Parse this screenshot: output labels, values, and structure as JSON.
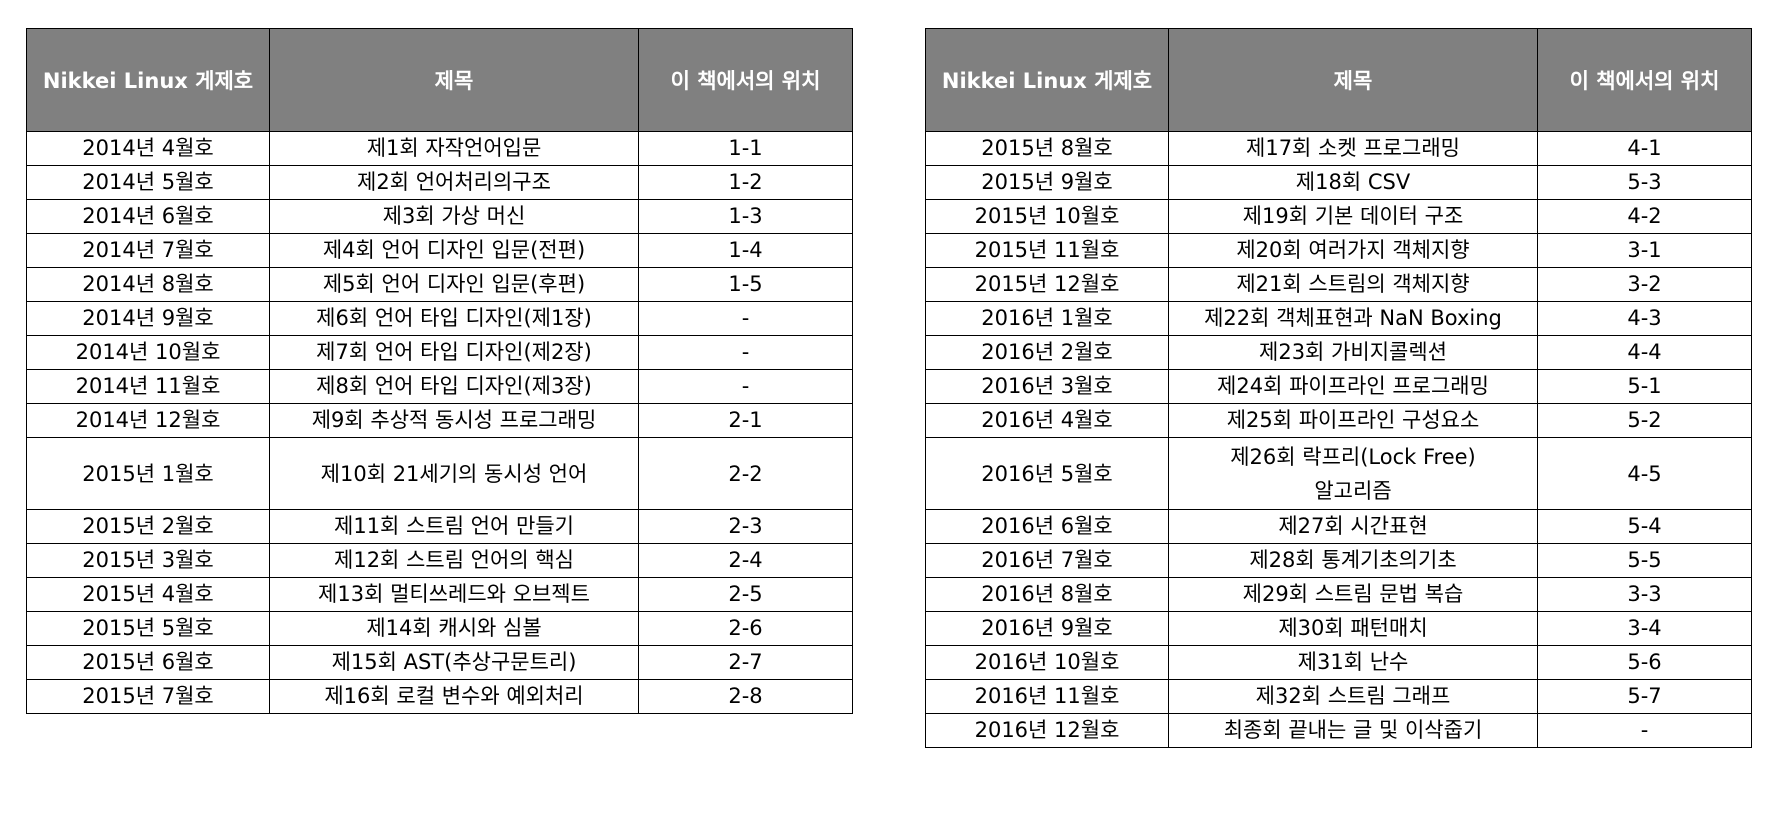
{
  "headers": {
    "issue": "Nikkei Linux 게제호",
    "title": "제목",
    "location": "이 책에서의 위치"
  },
  "left_rows": [
    {
      "issue": "2014년 4월호",
      "title": "제1회  자작언어입문",
      "location": "1-1"
    },
    {
      "issue": "2014년 5월호",
      "title": "제2회 언어처리의구조",
      "location": "1-2"
    },
    {
      "issue": "2014년 6월호",
      "title": "제3회 가상 머신",
      "location": "1-3"
    },
    {
      "issue": "2014년 7월호",
      "title": "제4회  언어 디자인 입문(전편)",
      "location": "1-4"
    },
    {
      "issue": "2014년 8월호",
      "title": "제5회  언어 디자인 입문(후편)",
      "location": "1-5"
    },
    {
      "issue": "2014년 9월호",
      "title": "제6회 언어 타입 디자인(제1장)",
      "location": "-"
    },
    {
      "issue": "2014년 10월호",
      "title": "제7회 언어 타입 디자인(제2장)",
      "location": "-"
    },
    {
      "issue": "2014년 11월호",
      "title": "제8회 언어 타입 디자인(제3장)",
      "location": "-"
    },
    {
      "issue": "2014년 12월호",
      "title": "제9회 추상적 동시성 프로그래밍",
      "location": "2-1"
    },
    {
      "issue": "2015년 1월호",
      "title": "제10회 21세기의 동시성 언어",
      "location": "2-2",
      "tall": true
    },
    {
      "issue": "2015년 2월호",
      "title": "제11회 스트림 언어 만들기",
      "location": "2-3"
    },
    {
      "issue": "2015년 3월호",
      "title": "제12회 스트림 언어의 핵심",
      "location": "2-4"
    },
    {
      "issue": "2015년 4월호",
      "title": "제13회 멀티쓰레드와 오브젝트",
      "location": "2-5"
    },
    {
      "issue": "2015년 5월호",
      "title": "제14회 캐시와 심볼",
      "location": "2-6"
    },
    {
      "issue": "2015년 6월호",
      "title": "제15회 AST(추상구문트리)",
      "location": "2-7"
    },
    {
      "issue": "2015년 7월호",
      "title": "제16회 로컬 변수와 예외처리",
      "location": "2-8"
    }
  ],
  "right_rows": [
    {
      "issue": "2015년 8월호",
      "title": "제17회 소켓 프로그래밍",
      "location": "4-1"
    },
    {
      "issue": "2015년 9월호",
      "title": "제18회 CSV",
      "location": "5-3"
    },
    {
      "issue": "2015년 10월호",
      "title": "제19회 기본 데이터 구조",
      "location": "4-2"
    },
    {
      "issue": "2015년 11월호",
      "title": "제20회 여러가지 객체지향",
      "location": "3-1"
    },
    {
      "issue": "2015년 12월호",
      "title": "제21회 스트림의 객체지향",
      "location": "3-2"
    },
    {
      "issue": "2016년 1월호",
      "title": "제22회 객체표현과 NaN Boxing",
      "location": "4-3"
    },
    {
      "issue": "2016년 2월호",
      "title": "제23회 가비지콜렉션",
      "location": "4-4"
    },
    {
      "issue": "2016년 3월호",
      "title": "제24회 파이프라인 프로그래밍",
      "location": "5-1"
    },
    {
      "issue": "2016년 4월호",
      "title": "제25회 파이프라인 구성요소",
      "location": "5-2"
    },
    {
      "issue": "2016년 5월호",
      "title": "제26회 락프리(Lock Free)\n알고리즘",
      "location": "4-5",
      "tall": true
    },
    {
      "issue": "2016년 6월호",
      "title": "제27회 시간표현",
      "location": "5-4"
    },
    {
      "issue": "2016년 7월호",
      "title": "제28회 통계기초의기초",
      "location": "5-5"
    },
    {
      "issue": "2016년 8월호",
      "title": "제29회 스트림 문법 복습",
      "location": "3-3"
    },
    {
      "issue": "2016년 9월호",
      "title": "제30회 패턴매치",
      "location": "3-4"
    },
    {
      "issue": "2016년 10월호",
      "title": "제31회 난수",
      "location": "5-6"
    },
    {
      "issue": "2016년 11월호",
      "title": "제32회 스트림 그래프",
      "location": "5-7"
    },
    {
      "issue": "2016년 12월호",
      "title": "최종회 끝내는 글 및 이삭줍기",
      "location": "-"
    }
  ]
}
